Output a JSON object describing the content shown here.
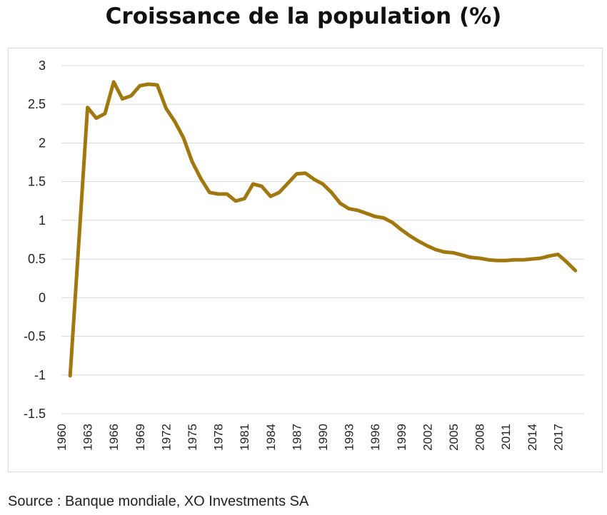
{
  "chart_data": {
    "type": "line",
    "title": "Croissance de la population (%)",
    "xlabel": "",
    "ylabel": "",
    "ylim": [
      -1.5,
      3
    ],
    "yticks": [
      "3",
      "2.5",
      "2",
      "1.5",
      "1",
      "0.5",
      "0",
      "-0.5",
      "-1",
      "-1.5"
    ],
    "xticks": [
      "1960",
      "1963",
      "1966",
      "1969",
      "1972",
      "1975",
      "1978",
      "1981",
      "1984",
      "1987",
      "1990",
      "1993",
      "1996",
      "1999",
      "2002",
      "2005",
      "2008",
      "2011",
      "2014",
      "2017"
    ],
    "grid": true,
    "legend": "none",
    "line_color": "#A0780F",
    "x": [
      1961,
      1962,
      1963,
      1964,
      1965,
      1966,
      1967,
      1968,
      1969,
      1970,
      1971,
      1972,
      1973,
      1974,
      1975,
      1976,
      1977,
      1978,
      1979,
      1980,
      1981,
      1982,
      1983,
      1984,
      1985,
      1986,
      1987,
      1988,
      1989,
      1990,
      1991,
      1992,
      1993,
      1994,
      1995,
      1996,
      1997,
      1998,
      1999,
      2000,
      2001,
      2002,
      2003,
      2004,
      2005,
      2006,
      2007,
      2008,
      2009,
      2010,
      2011,
      2012,
      2013,
      2014,
      2015,
      2016,
      2017,
      2018,
      2019
    ],
    "values": [
      -1.01,
      0.72,
      2.46,
      2.32,
      2.38,
      2.79,
      2.57,
      2.61,
      2.74,
      2.76,
      2.75,
      2.45,
      2.28,
      2.07,
      1.76,
      1.54,
      1.36,
      1.34,
      1.34,
      1.25,
      1.28,
      1.47,
      1.44,
      1.31,
      1.36,
      1.48,
      1.6,
      1.61,
      1.53,
      1.47,
      1.36,
      1.22,
      1.15,
      1.13,
      1.09,
      1.05,
      1.03,
      0.97,
      0.88,
      0.8,
      0.73,
      0.67,
      0.62,
      0.59,
      0.58,
      0.55,
      0.52,
      0.51,
      0.49,
      0.48,
      0.48,
      0.49,
      0.49,
      0.5,
      0.51,
      0.54,
      0.56,
      0.46,
      0.35
    ]
  },
  "footer": {
    "source": "Source : Banque mondiale, XO Investments SA"
  }
}
